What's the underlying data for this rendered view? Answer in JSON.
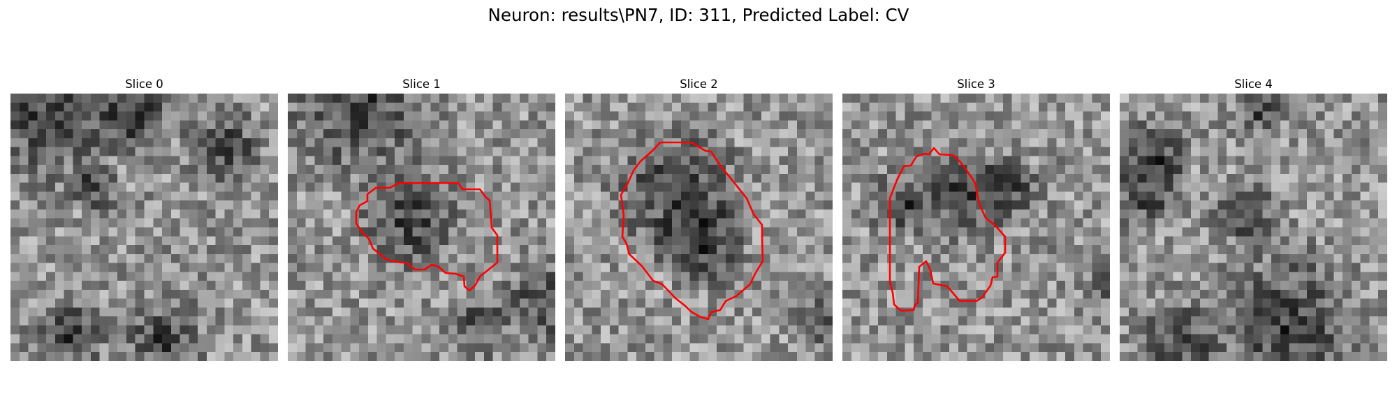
{
  "figure": {
    "title": "Neuron: results\\PN7, ID: 311, Predicted Label: CV"
  },
  "slices": [
    {
      "title": "Slice 0",
      "has_contour": false,
      "seed": 11,
      "dark_regions": [
        [
          0.12,
          0.05,
          0.35
        ],
        [
          0.45,
          0.06,
          0.2
        ],
        [
          0.78,
          0.18,
          0.18
        ],
        [
          0.3,
          0.33,
          0.12
        ],
        [
          0.55,
          0.9,
          0.2
        ],
        [
          0.2,
          0.88,
          0.18
        ]
      ]
    },
    {
      "title": "Slice 1",
      "has_contour": true,
      "seed": 23,
      "dark_regions": [
        [
          0.25,
          0.02,
          0.35
        ],
        [
          0.45,
          0.45,
          0.25
        ],
        [
          0.95,
          0.75,
          0.2
        ],
        [
          0.7,
          0.85,
          0.15
        ]
      ]
    },
    {
      "title": "Slice 2",
      "has_contour": true,
      "seed": 37,
      "dark_regions": [
        [
          0.4,
          0.35,
          0.3
        ],
        [
          0.97,
          0.82,
          0.15
        ],
        [
          0.5,
          0.55,
          0.2
        ]
      ]
    },
    {
      "title": "Slice 3",
      "has_contour": true,
      "seed": 51,
      "dark_regions": [
        [
          0.42,
          0.35,
          0.22
        ],
        [
          0.2,
          0.4,
          0.15
        ],
        [
          0.99,
          0.7,
          0.1
        ],
        [
          0.6,
          0.35,
          0.15
        ]
      ]
    },
    {
      "title": "Slice 4",
      "has_contour": false,
      "seed": 67,
      "dark_regions": [
        [
          0.08,
          0.35,
          0.18
        ],
        [
          0.12,
          0.2,
          0.15
        ],
        [
          0.45,
          0.43,
          0.15
        ],
        [
          0.6,
          0.85,
          0.35
        ],
        [
          0.2,
          0.92,
          0.2
        ],
        [
          0.5,
          0.05,
          0.12
        ]
      ]
    }
  ],
  "colors": {
    "contour": "#ff0000",
    "colormap": "gray"
  }
}
